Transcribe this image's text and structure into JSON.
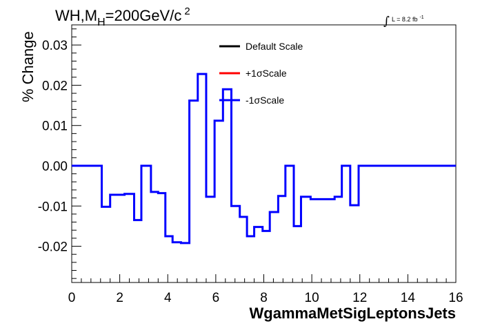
{
  "chart_data": {
    "type": "line",
    "title_main": "WH,M",
    "title_sub": "H",
    "title_rest": "=200GeV/c",
    "title_sup": "2",
    "lumi_text": "L = 8.2 fb",
    "lumi_sup": "-1",
    "xlabel": "WgammaMetSigLeptonsJets",
    "ylabel": "% Change",
    "xlim": [
      0,
      16
    ],
    "ylim": [
      -0.029,
      0.035
    ],
    "x_ticks": [
      "0",
      "2",
      "4",
      "6",
      "8",
      "10",
      "12",
      "14",
      "16"
    ],
    "y_ticks": [
      "-0.02",
      "-0.01",
      "0.00",
      "0.01",
      "0.02",
      "0.03"
    ],
    "legend": [
      {
        "label": "Default Scale",
        "color": "#000000"
      },
      {
        "label": "+1σScale",
        "color": "#ff0000"
      },
      {
        "label": "-1σScale",
        "color": "#0000ff"
      }
    ],
    "bin_edges": [
      0,
      1.25,
      1.6,
      2.2,
      2.6,
      2.9,
      3.3,
      3.6,
      3.9,
      4.2,
      4.55,
      4.9,
      5.25,
      5.6,
      5.95,
      6.3,
      6.65,
      7.0,
      7.3,
      7.6,
      7.95,
      8.25,
      8.6,
      8.9,
      9.25,
      9.55,
      9.95,
      10.95,
      11.25,
      11.6,
      11.95,
      16
    ],
    "series": [
      {
        "name": "-1σScale",
        "color": "#0000ff",
        "values": [
          0.0,
          -0.0102,
          -0.0072,
          -0.007,
          -0.0135,
          0.0,
          -0.0065,
          -0.0068,
          -0.0175,
          -0.019,
          -0.0192,
          0.0162,
          0.0228,
          -0.0077,
          0.0112,
          0.019,
          -0.01,
          -0.0127,
          -0.0175,
          -0.0152,
          -0.0162,
          -0.0115,
          -0.0075,
          0.0,
          -0.015,
          -0.0077,
          -0.0083,
          -0.0077,
          0.0,
          -0.0098,
          0.0,
          -0.0083,
          0.0
        ]
      }
    ],
    "grid": false,
    "legend_position": "top-center"
  }
}
